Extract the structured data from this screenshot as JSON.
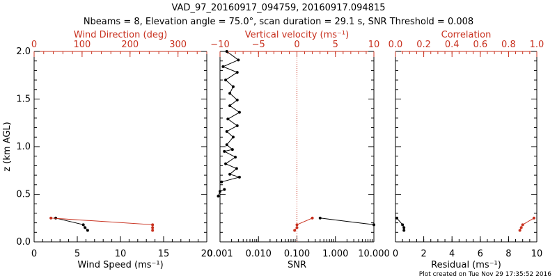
{
  "title_line1": "VAD_97_20160917_094759, 20160917.094815",
  "title_line2": "Nbeams = 8, Elevation angle = 75.0°, scan duration = 29.1 s, SNR Threshold = 0.008",
  "footer": "Plot created on Tue Nov 29 17:35:52 2016",
  "colors": {
    "black": "#000000",
    "red": "#c8301e"
  },
  "chart_data": [
    {
      "type": "line",
      "panel": "left",
      "ylabel": "z (km AGL)",
      "ylim": [
        0,
        2
      ],
      "yticks": [
        "0.0",
        "0.5",
        "1.0",
        "1.5",
        "2.0"
      ],
      "bottom_axis": {
        "label": "Wind Speed (ms⁻¹)",
        "range": [
          0,
          20
        ],
        "ticks": [
          "0",
          "5",
          "10",
          "15",
          "20"
        ]
      },
      "top_axis": {
        "label": "Wind Direction (deg)",
        "range": [
          0,
          360
        ],
        "ticks": [
          "0",
          "100",
          "200",
          "300"
        ]
      },
      "series": [
        {
          "axis": "bottom",
          "color": "#000000",
          "points": [
            [
              2.5,
              0.25
            ],
            [
              5.7,
              0.18
            ],
            [
              5.9,
              0.15
            ],
            [
              6.2,
              0.12
            ]
          ]
        },
        {
          "axis": "top",
          "color": "#c8301e",
          "points": [
            [
              35,
              0.25
            ],
            [
              247,
              0.18
            ],
            [
              247,
              0.15
            ],
            [
              247,
              0.12
            ]
          ]
        }
      ]
    },
    {
      "type": "line",
      "panel": "middle",
      "ylim": [
        0,
        2
      ],
      "bottom_axis": {
        "label": "SNR",
        "range": [
          0.001,
          10
        ],
        "log": true,
        "ticks": [
          "0.001",
          "0.010",
          "0.100",
          "1.000",
          "10.000"
        ]
      },
      "top_axis": {
        "label": "Vertical velocity (ms⁻¹)",
        "range": [
          -10,
          10
        ],
        "ticks": [
          "−10",
          "−5",
          "0",
          "5",
          "10"
        ],
        "zero_line": true
      },
      "series": [
        {
          "axis": "bottom",
          "color": "#000000",
          "points": [
            [
              0.0015,
              2.0
            ],
            [
              0.003,
              1.91
            ],
            [
              0.0012,
              1.84
            ],
            [
              0.0028,
              1.78
            ],
            [
              0.0014,
              1.7
            ],
            [
              0.0022,
              1.63
            ],
            [
              0.0018,
              1.56
            ],
            [
              0.0028,
              1.49
            ],
            [
              0.0018,
              1.43
            ],
            [
              0.0032,
              1.36
            ],
            [
              0.0016,
              1.29
            ],
            [
              0.0028,
              1.22
            ],
            [
              0.0015,
              1.16
            ],
            [
              0.0022,
              1.1
            ],
            [
              0.0015,
              1.02
            ],
            [
              0.0021,
              0.97
            ],
            [
              0.0013,
              0.95
            ],
            [
              0.0025,
              0.89
            ],
            [
              0.0014,
              0.82
            ],
            [
              0.0027,
              0.77
            ],
            [
              0.0018,
              0.71
            ],
            [
              0.0032,
              0.68
            ],
            [
              0.0011,
              0.63
            ]
          ]
        },
        {
          "axis": "bottom",
          "color": "#000000",
          "points": [
            [
              0.0013,
              0.55
            ],
            [
              0.001,
              0.53
            ],
            [
              0.0009,
              0.48
            ]
          ]
        },
        {
          "axis": "bottom",
          "color": "#000000",
          "points": [
            [
              0.4,
              0.25
            ],
            [
              10,
              0.18
            ]
          ]
        },
        {
          "axis": "top",
          "color": "#c8301e",
          "points": [
            [
              2,
              0.25
            ],
            [
              0,
              0.18
            ],
            [
              0,
              0.15
            ],
            [
              -0.3,
              0.12
            ]
          ]
        }
      ]
    },
    {
      "type": "line",
      "panel": "right",
      "ylim": [
        0,
        2
      ],
      "bottom_axis": {
        "label": "Residual (ms⁻¹)",
        "range": [
          0,
          10
        ],
        "ticks": [
          "0",
          "2",
          "4",
          "6",
          "8",
          "10"
        ]
      },
      "top_axis": {
        "label": "Correlation",
        "range": [
          0,
          1
        ],
        "ticks": [
          "0.0",
          "0.2",
          "0.4",
          "0.6",
          "0.8",
          "1.0"
        ]
      },
      "series": [
        {
          "axis": "bottom",
          "color": "#000000",
          "points": [
            [
              0.1,
              0.25
            ],
            [
              0.5,
              0.18
            ],
            [
              0.6,
              0.15
            ],
            [
              0.6,
              0.12
            ]
          ]
        },
        {
          "axis": "top",
          "color": "#c8301e",
          "points": [
            [
              0.98,
              0.25
            ],
            [
              0.9,
              0.18
            ],
            [
              0.89,
              0.15
            ],
            [
              0.88,
              0.12
            ]
          ]
        }
      ]
    }
  ]
}
